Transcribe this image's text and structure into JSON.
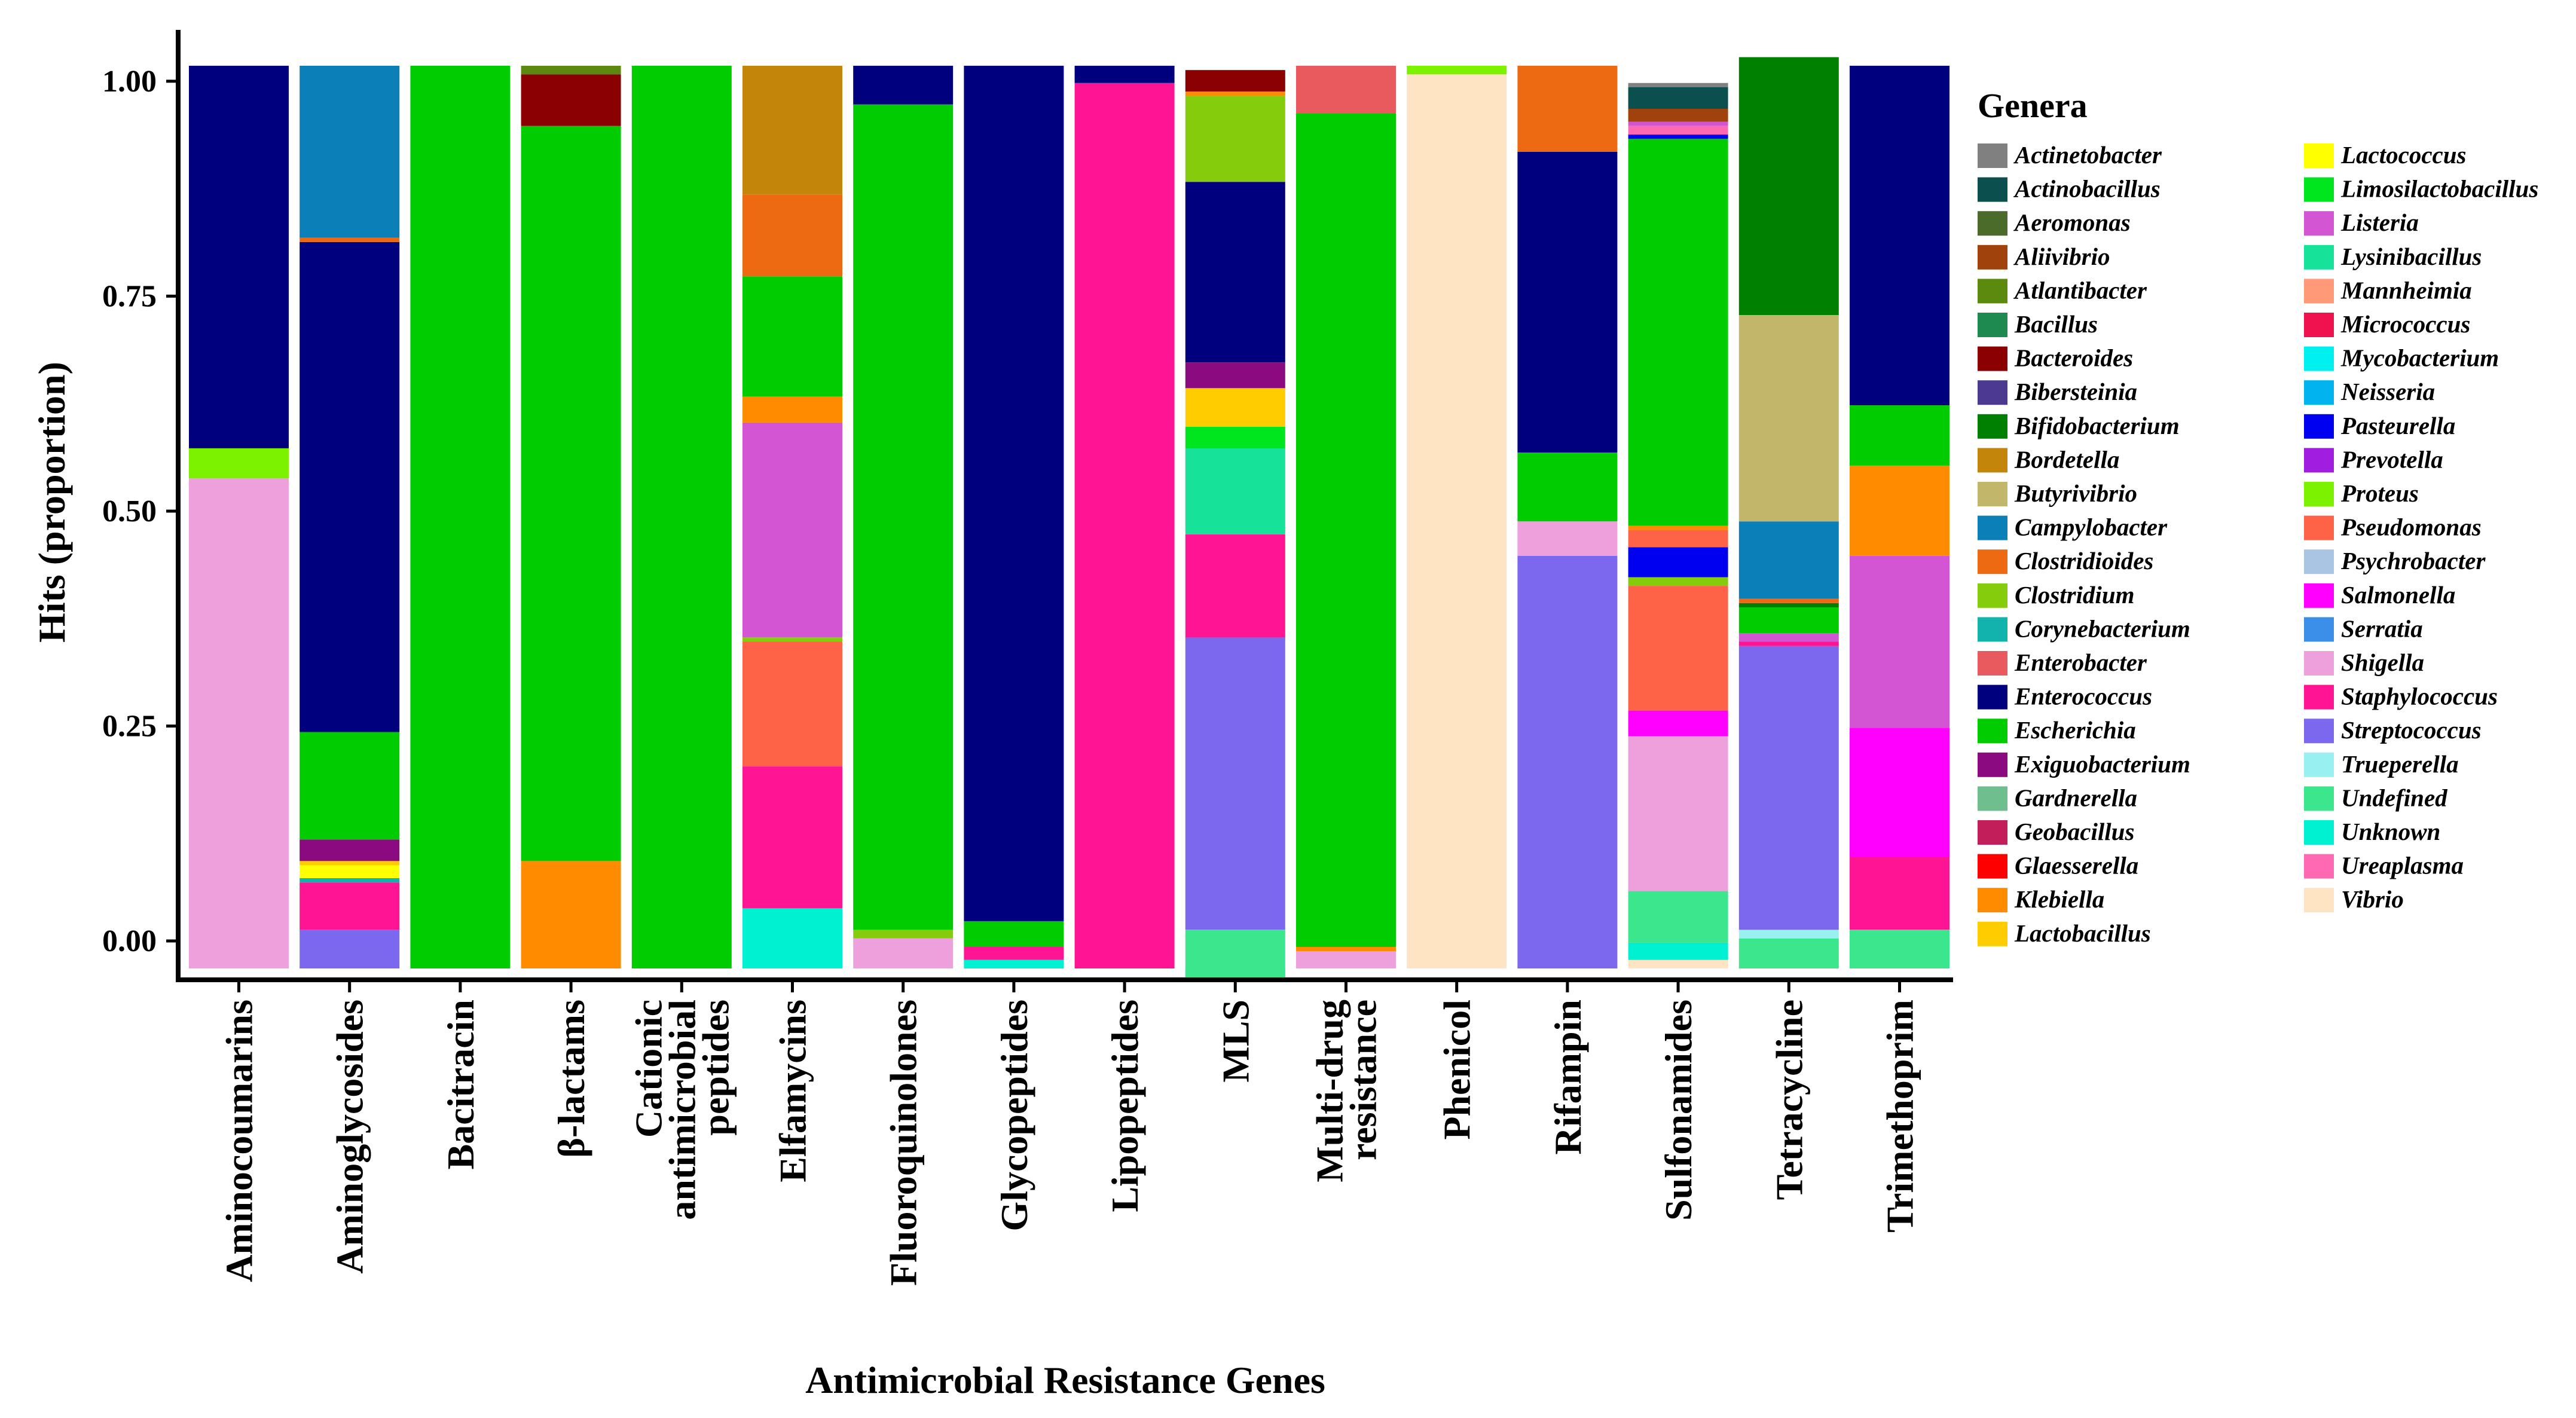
{
  "chart_data": {
    "type": "bar",
    "stacked": true,
    "title": "",
    "xlabel": "Antimicrobial Resistance Genes",
    "ylabel": "Hits (proportion)",
    "ylim": [
      -0.032,
      1.05
    ],
    "yticks": [
      0.0,
      0.25,
      0.5,
      0.75,
      1.0
    ],
    "yticklabels": [
      "0.00",
      "0.25",
      "0.50",
      "0.75",
      "1.00"
    ],
    "legend_title": "Genera",
    "legend_position": "right",
    "categories": [
      {
        "label": [
          "Aminocoumarins"
        ]
      },
      {
        "label": [
          "Aminoglycosides"
        ]
      },
      {
        "label": [
          "Bacitracin"
        ]
      },
      {
        "label": [
          "β-lactams"
        ]
      },
      {
        "label": [
          "Cationic",
          "antimicrobial",
          "peptides"
        ]
      },
      {
        "label": [
          "Elfamycins"
        ]
      },
      {
        "label": [
          "Fluoroquinolones"
        ]
      },
      {
        "label": [
          "Glycopeptides"
        ]
      },
      {
        "label": [
          "Lipopeptides"
        ]
      },
      {
        "label": [
          "MLS"
        ]
      },
      {
        "label": [
          "Multi-drug",
          "resistance"
        ]
      },
      {
        "label": [
          "Phenicol"
        ]
      },
      {
        "label": [
          "Rifampin"
        ]
      },
      {
        "label": [
          "Sulfonamides"
        ]
      },
      {
        "label": [
          "Tetracycline"
        ]
      },
      {
        "label": [
          "Trimethoprim"
        ]
      }
    ],
    "genera": [
      {
        "name": "Actinetobacter",
        "color": "#808080"
      },
      {
        "name": "Actinobacillus",
        "color": "#0B4F4F"
      },
      {
        "name": "Aeromonas",
        "color": "#4B6B2A"
      },
      {
        "name": "Aliivibrio",
        "color": "#A0420B"
      },
      {
        "name": "Atlantibacter",
        "color": "#5B8A0E"
      },
      {
        "name": "Bacillus",
        "color": "#1E8A50"
      },
      {
        "name": "Bacteroides",
        "color": "#8B0000"
      },
      {
        "name": "Bibersteinia",
        "color": "#4B3A8F"
      },
      {
        "name": "Bifidobacterium",
        "color": "#008000"
      },
      {
        "name": "Bordetella",
        "color": "#C4860A"
      },
      {
        "name": "Butyrivibrio",
        "color": "#C2B66A"
      },
      {
        "name": "Campylobacter",
        "color": "#0A7FB8"
      },
      {
        "name": "Clostridioides",
        "color": "#EE6A12"
      },
      {
        "name": "Clostridium",
        "color": "#84CC0C"
      },
      {
        "name": "Corynebacterium",
        "color": "#12B3AC"
      },
      {
        "name": "Enterobacter",
        "color": "#E85A5E"
      },
      {
        "name": "Enterococcus",
        "color": "#00007F"
      },
      {
        "name": "Escherichia",
        "color": "#00CC00"
      },
      {
        "name": "Exiguobacterium",
        "color": "#8B0A7F"
      },
      {
        "name": "Gardnerella",
        "color": "#6FBE8E"
      },
      {
        "name": "Geobacillus",
        "color": "#C21E5A"
      },
      {
        "name": "Glaesserella",
        "color": "#FF0000"
      },
      {
        "name": "Klebiella",
        "color": "#FF8C00"
      },
      {
        "name": "Lactobacillus",
        "color": "#FFCC00"
      },
      {
        "name": "Lactococcus",
        "color": "#FFFF00"
      },
      {
        "name": "Limosilactobacillus",
        "color": "#00E61E"
      },
      {
        "name": "Listeria",
        "color": "#D455D4"
      },
      {
        "name": "Lysinibacillus",
        "color": "#16E29A"
      },
      {
        "name": "Mannheimia",
        "color": "#FF9977"
      },
      {
        "name": "Micrococcus",
        "color": "#F0124E"
      },
      {
        "name": "Mycobacterium",
        "color": "#00F0F0"
      },
      {
        "name": "Neisseria",
        "color": "#00B4F0"
      },
      {
        "name": "Pasteurella",
        "color": "#0000F0"
      },
      {
        "name": "Prevotella",
        "color": "#A01EE0"
      },
      {
        "name": "Proteus",
        "color": "#7CF200"
      },
      {
        "name": "Pseudomonas",
        "color": "#FF6347"
      },
      {
        "name": "Psychrobacter",
        "color": "#AAC4E4"
      },
      {
        "name": "Salmonella",
        "color": "#FF00FF"
      },
      {
        "name": "Serratia",
        "color": "#3C8FE8"
      },
      {
        "name": "Shigella",
        "color": "#EEA0DC"
      },
      {
        "name": "Staphylococcus",
        "color": "#FF1493"
      },
      {
        "name": "Streptococcus",
        "color": "#7B68EE"
      },
      {
        "name": "Trueperella",
        "color": "#99F0F0"
      },
      {
        "name": "Undefined",
        "color": "#3CE68C"
      },
      {
        "name": "Unknown",
        "color": "#00F0D2"
      },
      {
        "name": "Ureaplasma",
        "color": "#FF69B4"
      },
      {
        "name": "Vibrio",
        "color": "#FFE4C4"
      }
    ],
    "stacks": [
      [
        [
          "Shigella",
          0.57
        ],
        [
          "Proteus",
          0.035
        ],
        [
          "Enterococcus",
          0.445
        ]
      ],
      [
        [
          "Streptococcus",
          0.045
        ],
        [
          "Staphylococcus",
          0.055
        ],
        [
          "Corynebacterium",
          0.005
        ],
        [
          "Lactococcus",
          0.015
        ],
        [
          "Lactobacillus",
          0.005
        ],
        [
          "Exiguobacterium",
          0.025
        ],
        [
          "Escherichia",
          0.125
        ],
        [
          "Enterococcus",
          0.57
        ],
        [
          "Clostridioides",
          0.005
        ],
        [
          "Campylobacter",
          0.2
        ]
      ],
      [
        [
          "Escherichia",
          1.05
        ]
      ],
      [
        [
          "Klebiella",
          0.125
        ],
        [
          "Escherichia",
          0.855
        ],
        [
          "Bacteroides",
          0.06
        ],
        [
          "Atlantibacter",
          0.01
        ]
      ],
      [
        [
          "Escherichia",
          1.05
        ]
      ],
      [
        [
          "Unknown",
          0.07
        ],
        [
          "Staphylococcus",
          0.165
        ],
        [
          "Pseudomonas",
          0.145
        ],
        [
          "Clostridium",
          0.005
        ],
        [
          "Listeria",
          0.25
        ],
        [
          "Klebiella",
          0.03
        ],
        [
          "Escherichia",
          0.14
        ],
        [
          "Clostridioides",
          0.095
        ],
        [
          "Bordetella",
          0.15
        ]
      ],
      [
        [
          "Shigella",
          0.035
        ],
        [
          "Clostridium",
          0.01
        ],
        [
          "Escherichia",
          0.96
        ],
        [
          "Enterococcus",
          0.045
        ]
      ],
      [
        [
          "Unknown",
          0.01
        ],
        [
          "Staphylococcus",
          0.015
        ],
        [
          "Escherichia",
          0.03
        ],
        [
          "Enterococcus",
          0.995
        ]
      ],
      [
        [
          "Staphylococcus",
          1.03
        ],
        [
          "Enterococcus",
          0.02
        ]
      ],
      [
        [
          "Unknown",
          -0.015
        ],
        [
          "Undefined",
          0.06
        ],
        [
          "Streptococcus",
          0.34
        ],
        [
          "Staphylococcus",
          0.12
        ],
        [
          "Lysinibacillus",
          0.1
        ],
        [
          "Limosilactobacillus",
          0.025
        ],
        [
          "Lactobacillus",
          0.045
        ],
        [
          "Exiguobacterium",
          0.03
        ],
        [
          "Enterococcus",
          0.21
        ],
        [
          "Clostridium",
          0.1
        ],
        [
          "Klebiella",
          0.005
        ],
        [
          "Bacteroides",
          0.025
        ]
      ],
      [
        [
          "Shigella",
          0.02
        ],
        [
          "Klebiella",
          0.005
        ],
        [
          "Escherichia",
          0.97
        ],
        [
          "Enterobacter",
          0.055
        ]
      ],
      [
        [
          "Vibrio",
          1.04
        ],
        [
          "Proteus",
          0.01
        ]
      ],
      [
        [
          "Streptococcus",
          0.48
        ],
        [
          "Shigella",
          0.04
        ],
        [
          "Escherichia",
          0.08
        ],
        [
          "Enterococcus",
          0.35
        ],
        [
          "Clostridioides",
          0.1
        ]
      ],
      [
        [
          "Vibrio",
          0.01
        ],
        [
          "Unknown",
          0.02
        ],
        [
          "Undefined",
          0.06
        ],
        [
          "Shigella",
          0.18
        ],
        [
          "Salmonella",
          0.03
        ],
        [
          "Pseudomonas",
          0.145
        ],
        [
          "Clostridium",
          0.01
        ],
        [
          "Pasteurella",
          0.035
        ],
        [
          "Pseudomonas",
          0.02
        ],
        [
          "Klebiella",
          0.005
        ],
        [
          "Escherichia",
          0.45
        ],
        [
          "Pasteurella",
          0.005
        ],
        [
          "Ureaplasma",
          0.01
        ],
        [
          "Listeria",
          0.005
        ],
        [
          "Aliivibrio",
          0.015
        ],
        [
          "Actinobacillus",
          0.025
        ],
        [
          "Actinetobacter",
          0.005
        ]
      ],
      [
        [
          "Unknown",
          0.0
        ],
        [
          "Undefined",
          0.035
        ],
        [
          "Trueperella",
          0.01
        ],
        [
          "Streptococcus",
          0.33
        ],
        [
          "Staphylococcus",
          0.005
        ],
        [
          "Listeria",
          0.01
        ],
        [
          "Escherichia",
          0.03
        ],
        [
          "Bifidobacterium",
          0.005
        ],
        [
          "Clostridioides",
          0.005
        ],
        [
          "Campylobacter",
          0.09
        ],
        [
          "Butyrivibrio",
          0.24
        ],
        [
          "Bifidobacterium",
          0.3
        ]
      ],
      [
        [
          "Undefined",
          0.045
        ],
        [
          "Staphylococcus",
          0.085
        ],
        [
          "Salmonella",
          0.15
        ],
        [
          "Listeria",
          0.2
        ],
        [
          "Klebiella",
          0.105
        ],
        [
          "Escherichia",
          0.07
        ],
        [
          "Enterococcus",
          0.395
        ]
      ]
    ]
  }
}
